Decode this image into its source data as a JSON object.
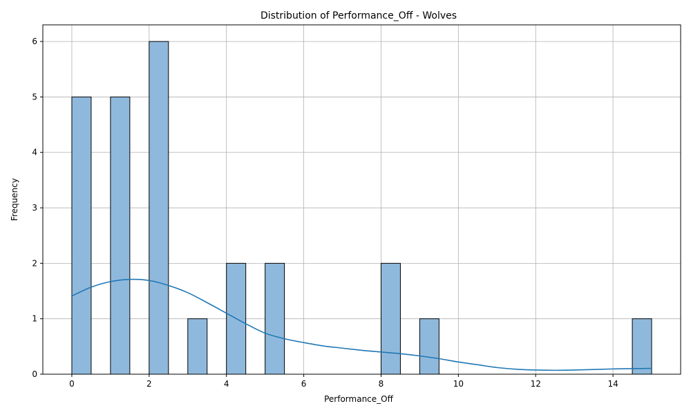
{
  "chart_data": {
    "type": "bar",
    "title": "Distribution of Performance_Off - Wolves",
    "xlabel": "Performance_Off",
    "ylabel": "Frequency",
    "xlim": [
      -0.75,
      15.75
    ],
    "ylim": [
      0,
      6.3
    ],
    "x_ticks": [
      0,
      2,
      4,
      6,
      8,
      10,
      12,
      14
    ],
    "y_ticks": [
      0,
      1,
      2,
      3,
      4,
      5,
      6
    ],
    "grid": true,
    "bin_width": 0.5,
    "bins": [
      {
        "start": 0.0,
        "count": 5
      },
      {
        "start": 1.0,
        "count": 5
      },
      {
        "start": 2.0,
        "count": 6
      },
      {
        "start": 3.0,
        "count": 1
      },
      {
        "start": 4.0,
        "count": 2
      },
      {
        "start": 5.0,
        "count": 2
      },
      {
        "start": 8.0,
        "count": 2
      },
      {
        "start": 9.0,
        "count": 1
      },
      {
        "start": 14.5,
        "count": 1
      }
    ],
    "kde": {
      "x": [
        0,
        0.5,
        1,
        1.5,
        2,
        2.5,
        3,
        3.5,
        4,
        4.5,
        5,
        5.5,
        6,
        6.5,
        7,
        7.5,
        8,
        8.5,
        9,
        9.5,
        10,
        10.5,
        11,
        11.5,
        12,
        12.5,
        13,
        13.5,
        14,
        14.5,
        15
      ],
      "y": [
        1.41,
        1.57,
        1.67,
        1.71,
        1.69,
        1.6,
        1.47,
        1.29,
        1.1,
        0.91,
        0.74,
        0.64,
        0.57,
        0.51,
        0.47,
        0.43,
        0.4,
        0.37,
        0.33,
        0.28,
        0.22,
        0.17,
        0.12,
        0.09,
        0.075,
        0.07,
        0.075,
        0.085,
        0.095,
        0.1,
        0.105
      ]
    },
    "colors": {
      "bar_fill": "#8fb9dc",
      "bar_edge": "#000000",
      "kde_line": "#1f77b4",
      "grid": "#b0b0b0"
    }
  }
}
